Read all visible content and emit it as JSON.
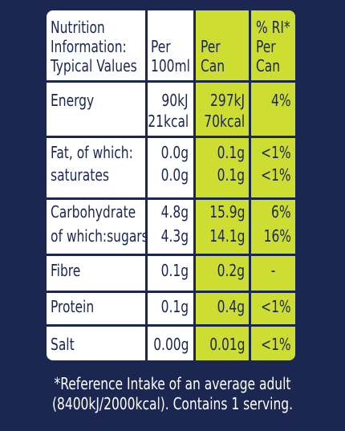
{
  "colors": {
    "background": "#1b2651",
    "panel": "#ffffff",
    "highlight": "#cddd32",
    "text": "#1b2651",
    "footer_text": "#ffffff"
  },
  "header": {
    "label_line1": "Nutrition",
    "label_line2": "Information:",
    "label_line3": "Typical Values",
    "per100_line1": "Per",
    "per100_line2": "100ml",
    "percan_line1": "Per",
    "percan_line2": "Can",
    "ri_line1": "% RI*",
    "ri_line2": "Per",
    "ri_line3": "Can"
  },
  "rows": {
    "energy": {
      "label": "Energy",
      "per100_kj": "90kJ",
      "per100_kcal": "21kcal",
      "percan_kj": "297kJ",
      "percan_kcal": "70kcal",
      "ri": "4%"
    },
    "fat": {
      "label": "Fat, of which:",
      "per100": "0.0g",
      "percan": "0.1g",
      "ri": "<1%"
    },
    "saturates": {
      "label": "saturates",
      "per100": "0.0g",
      "percan": "0.1g",
      "ri": "<1%"
    },
    "carbohydrate": {
      "label": "Carbohydrate",
      "per100": "4.8g",
      "percan": "15.9g",
      "ri": "6%"
    },
    "sugars": {
      "label": "of which:sugars",
      "per100": "4.3g",
      "percan": "14.1g",
      "ri": "16%"
    },
    "fibre": {
      "label": "Fibre",
      "per100": "0.1g",
      "percan": "0.2g",
      "ri": "-"
    },
    "protein": {
      "label": "Protein",
      "per100": "0.1g",
      "percan": "0.4g",
      "ri": "<1%"
    },
    "salt": {
      "label": "Salt",
      "per100": "0.00g",
      "percan": "0.01g",
      "ri": "<1%"
    }
  },
  "footer": {
    "line1": "*Reference Intake of an average adult",
    "line2": "(8400kJ/2000kcal). Contains 1 serving."
  }
}
